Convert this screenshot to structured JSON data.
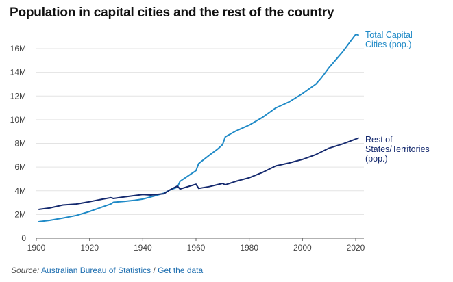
{
  "title": "Population in capital cities and the rest of the country",
  "source": {
    "prefix": "Source:",
    "link_label": "Australian Bureau of Statistics",
    "separator": "/",
    "data_link_label": "Get the data"
  },
  "colors": {
    "capital": "#1f8ac7",
    "rest": "#14296e",
    "grid": "#e3e3e3",
    "link": "#1f6fb0"
  },
  "chart_data": {
    "type": "line",
    "title": "Population in capital cities and the rest of the country",
    "xlabel": "",
    "ylabel": "",
    "xlim": [
      1900,
      2022
    ],
    "ylim": [
      0,
      17500000
    ],
    "x_ticks": [
      "1900",
      "1920",
      "1940",
      "1960",
      "1980",
      "2000",
      "2020"
    ],
    "y_ticks": [
      "0",
      "2M",
      "4M",
      "6M",
      "8M",
      "10M",
      "12M",
      "14M",
      "16M"
    ],
    "grid": true,
    "legend": "direct labels at line ends (right)",
    "series": [
      {
        "name": "Total Capital\nCities (pop.)",
        "color": "#1f8ac7",
        "points": [
          [
            1901,
            1390000
          ],
          [
            1905,
            1500000
          ],
          [
            1910,
            1700000
          ],
          [
            1915,
            1920000
          ],
          [
            1920,
            2250000
          ],
          [
            1925,
            2650000
          ],
          [
            1928,
            2880000
          ],
          [
            1929,
            3030000
          ],
          [
            1933,
            3100000
          ],
          [
            1937,
            3200000
          ],
          [
            1940,
            3300000
          ],
          [
            1945,
            3600000
          ],
          [
            1948,
            3800000
          ],
          [
            1950,
            4050000
          ],
          [
            1953,
            4300000
          ],
          [
            1954,
            4800000
          ],
          [
            1958,
            5400000
          ],
          [
            1959,
            5550000
          ],
          [
            1960,
            5700000
          ],
          [
            1961,
            6300000
          ],
          [
            1965,
            7000000
          ],
          [
            1968,
            7500000
          ],
          [
            1970,
            7900000
          ],
          [
            1971,
            8550000
          ],
          [
            1975,
            9050000
          ],
          [
            1980,
            9550000
          ],
          [
            1982,
            9800000
          ],
          [
            1985,
            10200000
          ],
          [
            1990,
            11000000
          ],
          [
            1995,
            11500000
          ],
          [
            2000,
            12200000
          ],
          [
            2005,
            13000000
          ],
          [
            2007,
            13500000
          ],
          [
            2010,
            14400000
          ],
          [
            2015,
            15700000
          ],
          [
            2020,
            17200000
          ],
          [
            2021,
            17150000
          ]
        ]
      },
      {
        "name": "Rest of\nStates/Territories\n(pop.)",
        "color": "#14296e",
        "points": [
          [
            1901,
            2430000
          ],
          [
            1905,
            2550000
          ],
          [
            1910,
            2800000
          ],
          [
            1915,
            2880000
          ],
          [
            1920,
            3080000
          ],
          [
            1925,
            3300000
          ],
          [
            1928,
            3420000
          ],
          [
            1929,
            3350000
          ],
          [
            1933,
            3480000
          ],
          [
            1937,
            3600000
          ],
          [
            1940,
            3680000
          ],
          [
            1943,
            3640000
          ],
          [
            1948,
            3750000
          ],
          [
            1950,
            4050000
          ],
          [
            1953,
            4400000
          ],
          [
            1954,
            4150000
          ],
          [
            1958,
            4420000
          ],
          [
            1960,
            4550000
          ],
          [
            1961,
            4200000
          ],
          [
            1965,
            4350000
          ],
          [
            1970,
            4620000
          ],
          [
            1971,
            4500000
          ],
          [
            1975,
            4800000
          ],
          [
            1980,
            5100000
          ],
          [
            1985,
            5550000
          ],
          [
            1990,
            6100000
          ],
          [
            1995,
            6350000
          ],
          [
            2000,
            6650000
          ],
          [
            2005,
            7050000
          ],
          [
            2010,
            7600000
          ],
          [
            2015,
            7950000
          ],
          [
            2021,
            8450000
          ]
        ]
      }
    ]
  }
}
